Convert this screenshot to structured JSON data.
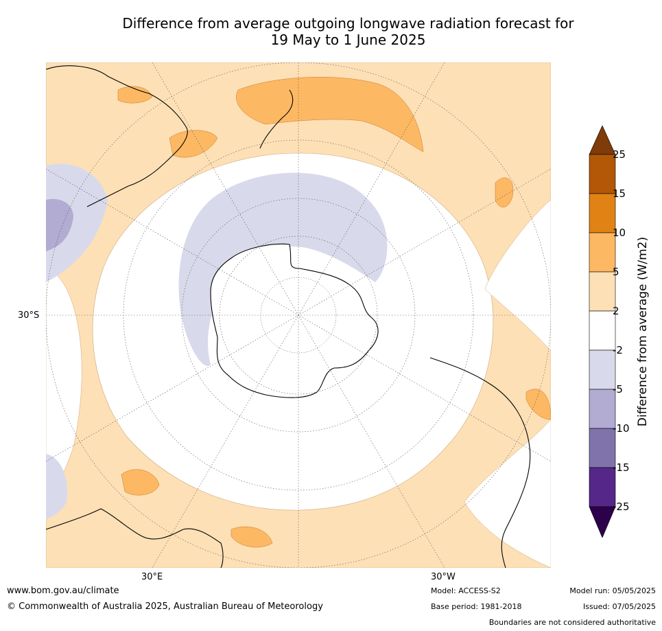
{
  "title": {
    "line1": "Difference from average outgoing longwave radiation forecast for",
    "line2": "19 May to 1 June 2025"
  },
  "map": {
    "projection": "south-polar stereographic",
    "labels": {
      "lat30s": "30°S",
      "lon30e": "30°E",
      "lon30w": "30°W"
    }
  },
  "colorbar": {
    "title": "Difference from average (W/m2)",
    "ticks": [
      "25",
      "15",
      "10",
      "5",
      "2",
      "-2",
      "-5",
      "-10",
      "-15",
      "-25"
    ],
    "colors": {
      "gt25": "#7f3b08",
      "15_25": "#b35806",
      "10_15": "#e08214",
      "5_10": "#fdb863",
      "2_5": "#fee0b6",
      "-2_2": "#ffffff",
      "-5_-2": "#d8daeb",
      "-10_-5": "#b2abd2",
      "-15_-10": "#8073ac",
      "-25_-15": "#542788",
      "lt-25": "#2d004b"
    }
  },
  "footer": {
    "website": "www.bom.gov.au/climate",
    "copyright": "© Commonwealth of Australia 2025, Australian Bureau of Meteorology",
    "model": "Model: ACCESS-S2",
    "base_period": "Base period: 1981-2018",
    "model_run": "Model run: 05/05/2025",
    "issued": "Issued: 07/05/2025",
    "disclaimer": "Boundaries are not considered authoritative"
  }
}
